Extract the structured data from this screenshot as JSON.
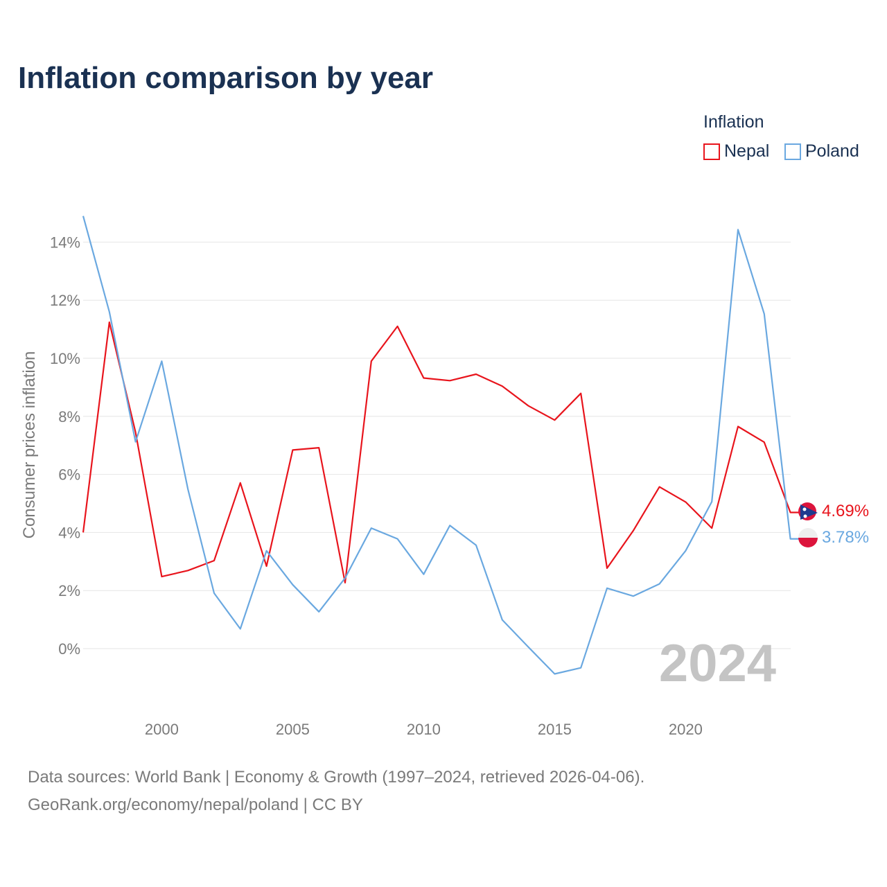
{
  "title": "Inflation comparison by year",
  "legend": {
    "title": "Inflation",
    "items": [
      {
        "label": "Nepal",
        "color": "#e8141c"
      },
      {
        "label": "Poland",
        "color": "#6aa8e0"
      }
    ]
  },
  "chart_data": {
    "type": "line",
    "title": "Inflation comparison by year",
    "xlabel": "",
    "ylabel": "Consumer prices inflation",
    "x": [
      1997,
      1998,
      1999,
      2000,
      2001,
      2002,
      2003,
      2004,
      2005,
      2006,
      2007,
      2008,
      2009,
      2010,
      2011,
      2012,
      2013,
      2014,
      2015,
      2016,
      2017,
      2018,
      2019,
      2020,
      2021,
      2022,
      2023,
      2024
    ],
    "series": [
      {
        "name": "Nepal",
        "color": "#e8141c",
        "flag": "nepal-flag-icon",
        "end_label": "4.69%",
        "values": [
          4.0,
          11.24,
          7.45,
          2.48,
          2.69,
          3.03,
          5.71,
          2.84,
          6.84,
          6.92,
          2.27,
          9.9,
          11.1,
          9.32,
          9.23,
          9.45,
          9.04,
          8.36,
          7.87,
          8.79,
          2.77,
          4.06,
          5.57,
          5.05,
          4.15,
          7.65,
          7.11,
          4.69
        ]
      },
      {
        "name": "Poland",
        "color": "#6aa8e0",
        "flag": "poland-flag-icon",
        "end_label": "3.78%",
        "values": [
          14.9,
          11.6,
          7.12,
          9.9,
          5.49,
          1.91,
          0.68,
          3.37,
          2.2,
          1.27,
          2.43,
          4.15,
          3.78,
          2.56,
          4.24,
          3.56,
          0.99,
          0.05,
          -0.87,
          -0.66,
          2.08,
          1.81,
          2.23,
          3.37,
          5.06,
          14.43,
          11.53,
          3.78
        ]
      }
    ],
    "ylim": [
      -2,
      15
    ],
    "y_ticks": [
      0,
      2,
      4,
      6,
      8,
      10,
      12,
      14
    ],
    "y_tick_labels": [
      "0%",
      "2%",
      "4%",
      "6%",
      "8%",
      "10%",
      "12%",
      "14%"
    ],
    "x_ticks": [
      2000,
      2005,
      2010,
      2015,
      2020
    ],
    "x_tick_labels": [
      "2000",
      "2005",
      "2010",
      "2015",
      "2020"
    ],
    "grid": true,
    "year_watermark": "2024"
  },
  "sources": {
    "line1": "Data sources: World Bank | Economy & Growth (1997–2024, retrieved 2026-04-06).",
    "line2": "GeoRank.org/economy/nepal/poland | CC BY"
  }
}
